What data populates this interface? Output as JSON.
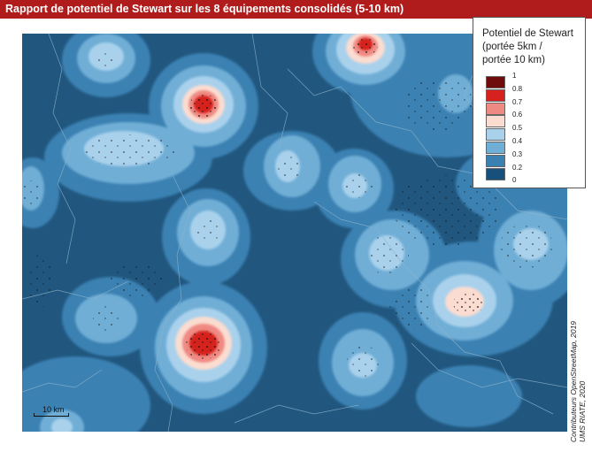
{
  "title": "Rapport de potentiel de Stewart sur les 8 équipements consolidés (5-10 km)",
  "legend": {
    "title_lines": [
      "Potentiel de Stewart",
      "(portée 5km /",
      "portée 10 km)"
    ],
    "classes": [
      {
        "label": "1",
        "color": "#6e0b0b"
      },
      {
        "label": "0.8",
        "color": "#d6211f"
      },
      {
        "label": "0.7",
        "color": "#ef8a83"
      },
      {
        "label": "0.6",
        "color": "#fbdcd0"
      },
      {
        "label": "0.5",
        "color": "#a9d1ec"
      },
      {
        "label": "0.4",
        "color": "#6faed6"
      },
      {
        "label": "0.3",
        "color": "#3a81b2"
      },
      {
        "label": "0.2",
        "color": "#17507a"
      },
      {
        "label": "0",
        "color": ""
      }
    ]
  },
  "scale": {
    "label": "10 km"
  },
  "source_lines": [
    "Contributeurs OpenStreetMap, 2019",
    "UMS RIATE, 2020"
  ],
  "map": {
    "base_color": "#21577f",
    "hotspots": [
      {
        "name": "north-center",
        "level": 0.8
      },
      {
        "name": "upper-left-city",
        "level": 0.8
      },
      {
        "name": "lower-left-city",
        "level": 0.8
      },
      {
        "name": "east-city",
        "level": 0.6
      }
    ]
  }
}
